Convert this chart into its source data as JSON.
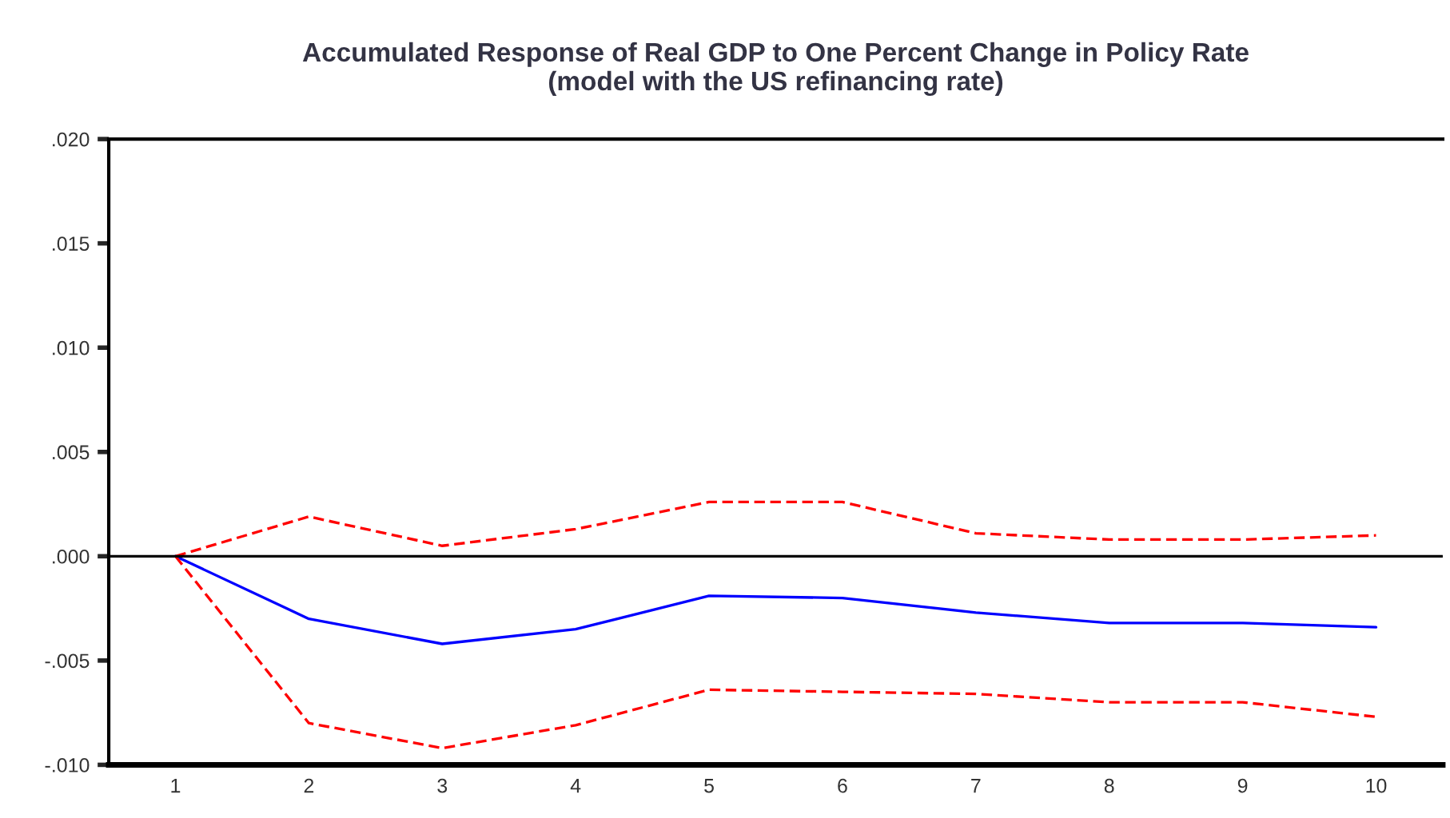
{
  "chart_data": {
    "type": "line",
    "title": "Accumulated Response of Real GDP to One Percent Change in Policy Rate\n(model with the US refinancing rate)",
    "categories": [
      "1",
      "2",
      "3",
      "4",
      "5",
      "6",
      "7",
      "8",
      "9",
      "10"
    ],
    "series": [
      {
        "color": "#0000ff",
        "line_style": "solid",
        "values": [
          0.0,
          -0.003,
          -0.0042,
          -0.0035,
          -0.0019,
          -0.002,
          -0.0027,
          -0.0032,
          -0.0032,
          -0.0034
        ]
      },
      {
        "color": "#ff0000",
        "line_style": "dashed",
        "values": [
          0.0,
          0.0019,
          0.0005,
          0.0013,
          0.0026,
          0.0026,
          0.0011,
          0.0008,
          0.0008,
          0.001
        ]
      },
      {
        "color": "#ff0000",
        "line_style": "dashed",
        "values": [
          0.0,
          -0.008,
          -0.0092,
          -0.0081,
          -0.0064,
          -0.0065,
          -0.0066,
          -0.007,
          -0.007,
          -0.0077
        ]
      }
    ],
    "ylim": [
      -0.01,
      0.02
    ],
    "yticks": [
      {
        "value": -0.01,
        "label": "-.010"
      },
      {
        "value": -0.005,
        "label": "-.005"
      },
      {
        "value": 0.0,
        "label": ".000"
      },
      {
        "value": 0.005,
        "label": ".005"
      },
      {
        "value": 0.01,
        "label": ".010"
      },
      {
        "value": 0.015,
        "label": ".015"
      },
      {
        "value": 0.02,
        "label": ".020"
      }
    ],
    "ref_lines": [
      {
        "axis": "y",
        "value": 0.0,
        "color": "#000000"
      }
    ],
    "grid": false,
    "legend": false
  }
}
